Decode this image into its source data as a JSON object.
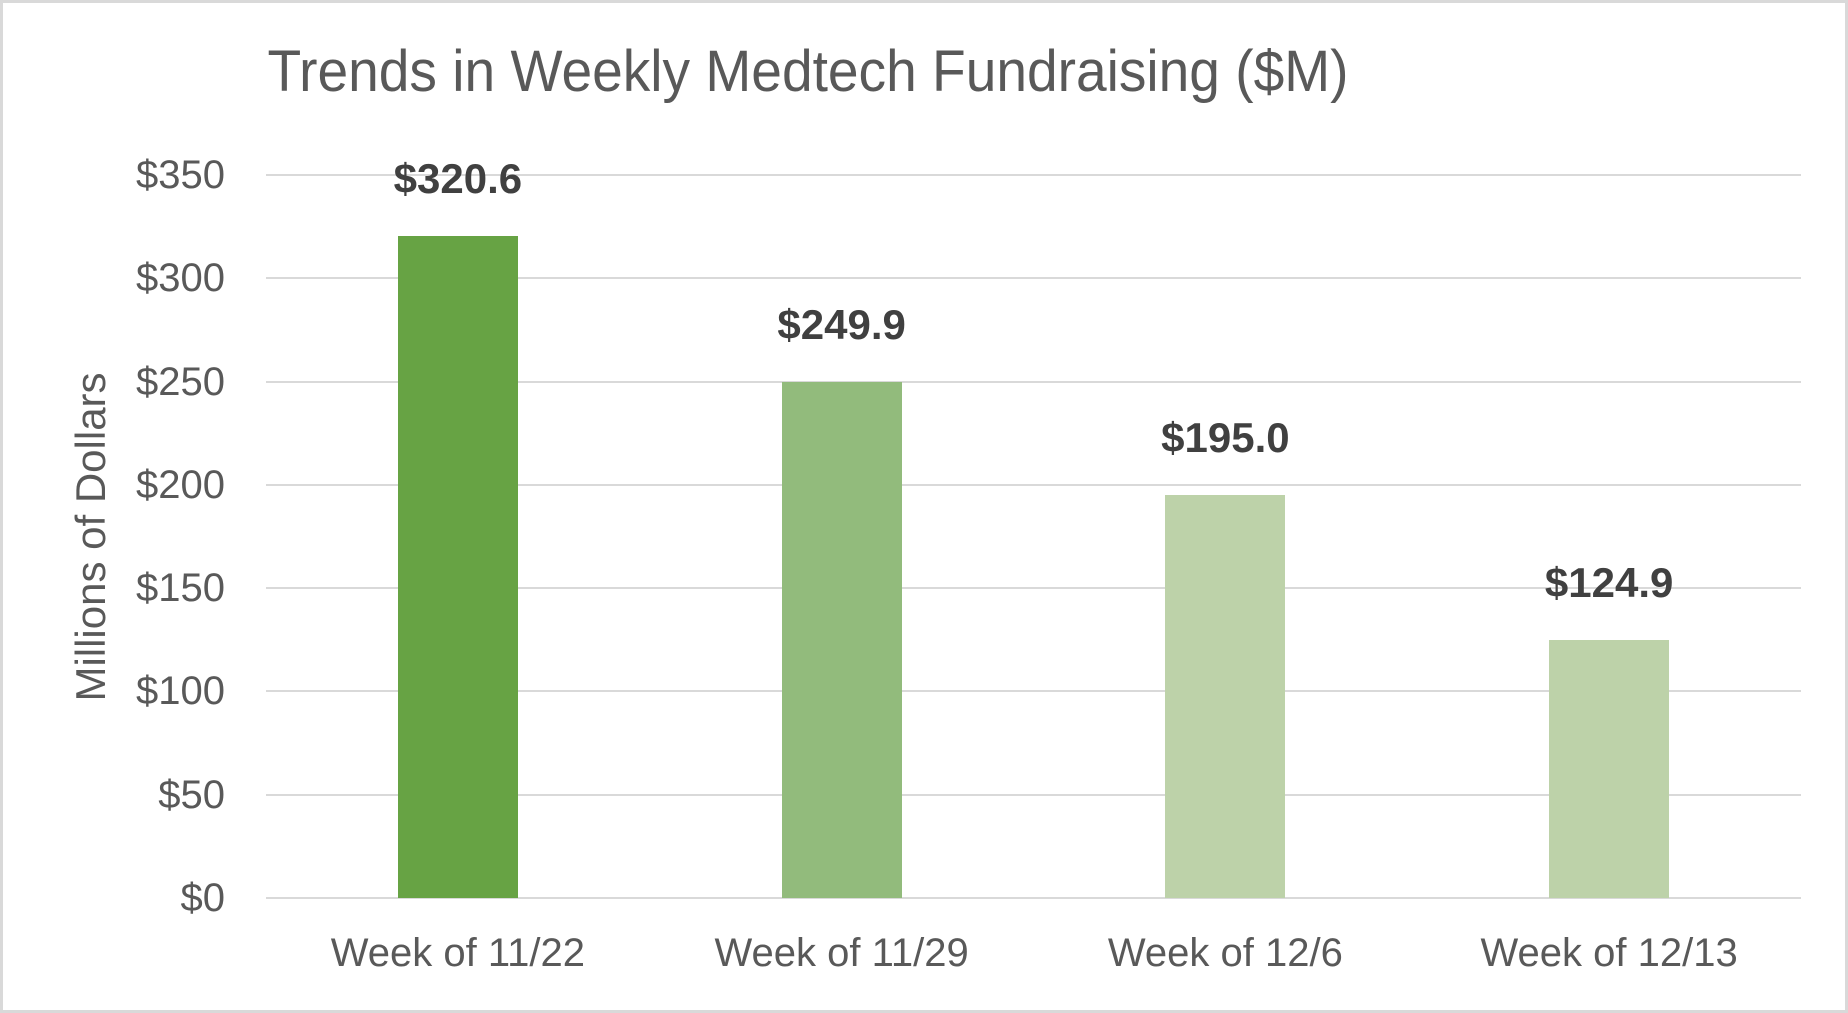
{
  "chart_data": {
    "type": "bar",
    "title": "Trends in Weekly Medtech Fundraising ($M)",
    "ylabel": "Millions of Dollars",
    "xlabel": "",
    "categories": [
      "Week of 11/22",
      "Week of 11/29",
      "Week of 12/6",
      "Week of 12/13"
    ],
    "values": [
      320.6,
      249.9,
      195.0,
      124.9
    ],
    "data_labels": [
      "$320.6",
      "$249.9",
      "$195.0",
      "$124.9"
    ],
    "bar_colors": [
      "#67A344",
      "#92BB7C",
      "#BDD2A9",
      "#BDD2A9"
    ],
    "ylim": [
      0,
      350
    ],
    "ytick_step": 50,
    "ytick_labels": [
      "$0",
      "$50",
      "$100",
      "$150",
      "$200",
      "$250",
      "$300",
      "$350"
    ],
    "grid": true,
    "legend": false
  },
  "style": {
    "background_color": "#FFFFFF",
    "border_color": "#D9D9D9",
    "grid_color": "#D9D9D9",
    "axis_text_color": "#595959",
    "title_color": "#595959",
    "data_label_color": "#404040"
  }
}
